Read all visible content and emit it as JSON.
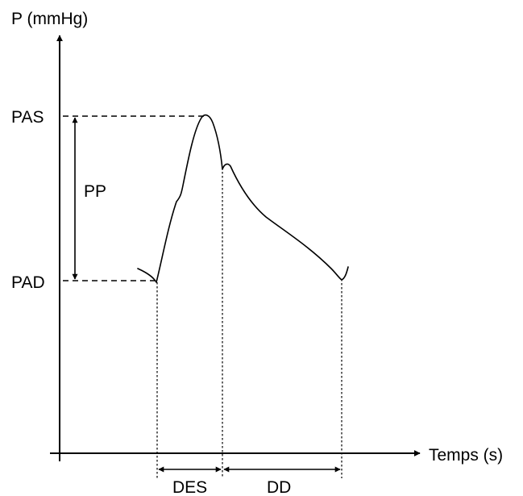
{
  "y_axis_label": "P (mmHg)",
  "x_axis_label": "Temps (s)",
  "pas_label": "PAS",
  "pad_label": "PAD",
  "pp_label": "PP",
  "des_label": "DES",
  "dd_label": "DD"
}
